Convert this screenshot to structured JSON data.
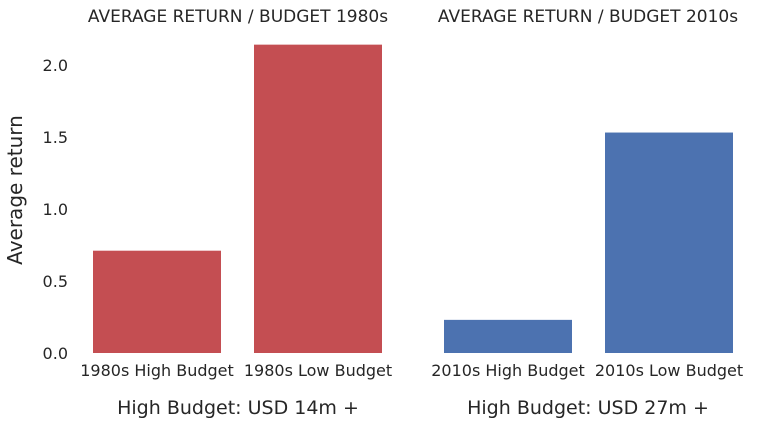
{
  "chart_data": {
    "ylabel": "Average return",
    "ylim": [
      0,
      2.2
    ],
    "yticks": [
      "0.0",
      "0.5",
      "1.0",
      "1.5",
      "2.0"
    ],
    "ytick_values": [
      0,
      0.5,
      1.0,
      1.5,
      2.0
    ],
    "grid": false,
    "charts": [
      {
        "type": "bar",
        "title": "AVERAGE RETURN / BUDGET 1980s",
        "xlabel": "High Budget: USD 14m +",
        "categories": [
          "1980s High Budget",
          "1980s Low Budget"
        ],
        "values": [
          0.71,
          2.14
        ],
        "color": "#c44e52"
      },
      {
        "type": "bar",
        "title": "AVERAGE RETURN / BUDGET 2010s",
        "xlabel": "High Budget: USD 27m +",
        "categories": [
          "2010s High Budget",
          "2010s Low Budget"
        ],
        "values": [
          0.23,
          1.53
        ],
        "color": "#4c72b0"
      }
    ]
  }
}
